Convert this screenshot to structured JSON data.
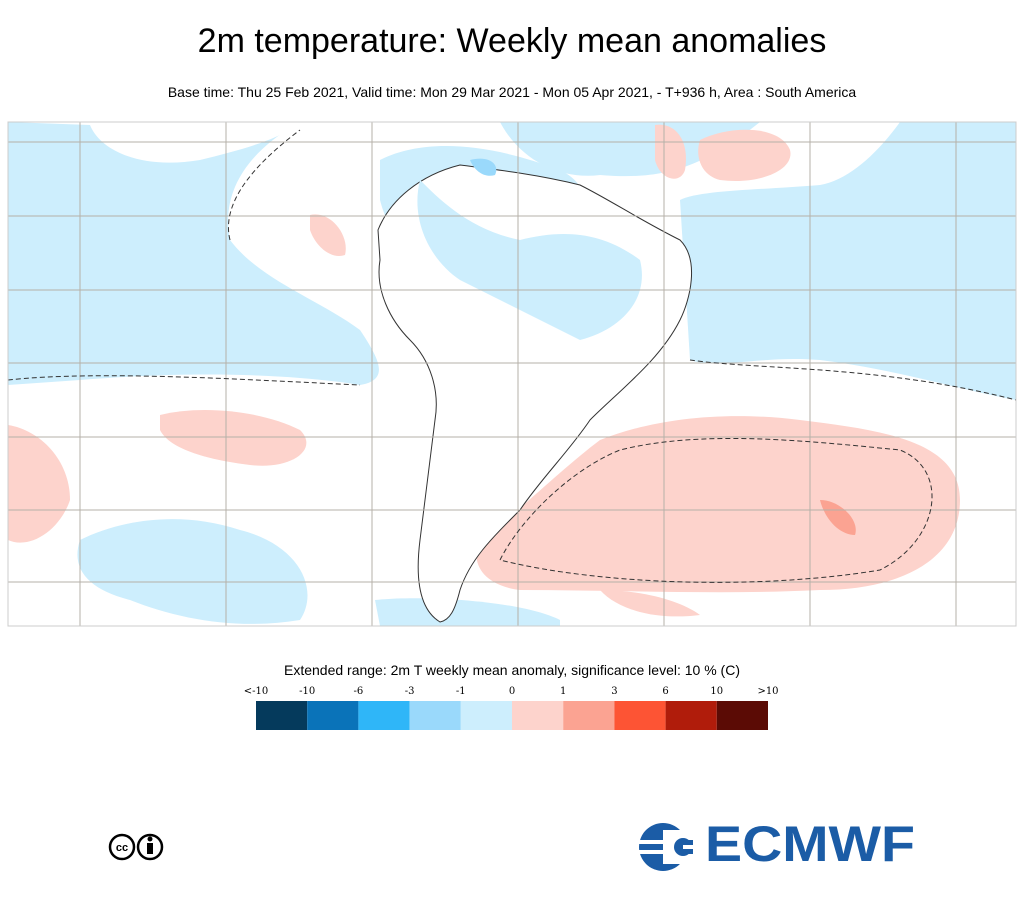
{
  "header": {
    "title": "2m temperature: Weekly mean anomalies",
    "subtitle": "Base time: Thu 25 Feb 2021, Valid time: Mon 29 Mar 2021 - Mon 05 Apr 2021, - T+936 h, Area : South America"
  },
  "legend": {
    "title": "Extended range: 2m T weekly mean anomaly, significance level: 10 % (C)",
    "labels": [
      "<-10",
      "-10",
      "-6",
      "-3",
      "-1",
      "0",
      "1",
      "3",
      "6",
      "10",
      ">10"
    ],
    "colors": [
      "#053a5c",
      "#0a73b9",
      "#2fb6f8",
      "#9ad9fb",
      "#cdeefd",
      "#fdd3cc",
      "#fba392",
      "#fd5434",
      "#b01c0b",
      "#5b0b05"
    ]
  },
  "logo": {
    "text": "ECMWF"
  }
}
